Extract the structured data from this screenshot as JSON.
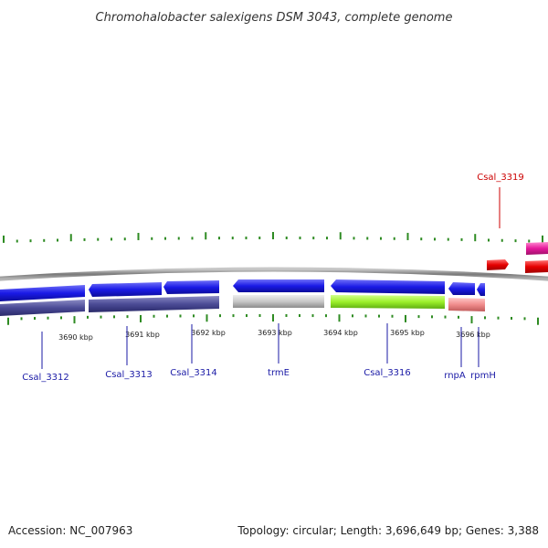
{
  "title": "Chromohalobacter salexigens DSM 3043, complete genome",
  "footer": {
    "accession": "Accession: NC_007963",
    "summary": "Topology: circular; Length: 3,696,649 bp; Genes: 3,388"
  },
  "colors": {
    "backbone": "#8a8a8a",
    "ticks": "#2e8b22",
    "label_blue": "#1a1aa6",
    "label_red": "#cc0000",
    "cds_blue": "#1a1ae6",
    "pseudo_dark": "#4b4b96",
    "grey": "#c8c8c8",
    "green": "#9cf02a",
    "pink": "#f08c8c",
    "red": "#e60000",
    "magenta": "#e6199b"
  },
  "scale_labels": [
    {
      "text": "3690 kbp"
    },
    {
      "text": "3691 kbp"
    },
    {
      "text": "3692 kbp"
    },
    {
      "text": "3693 kbp"
    },
    {
      "text": "3694 kbp"
    },
    {
      "text": "3695 kbp"
    },
    {
      "text": "3696 kbp"
    }
  ],
  "gene_labels": [
    {
      "text": "Csal_3312",
      "color": "#1a1aa6"
    },
    {
      "text": "Csal_3313",
      "color": "#1a1aa6"
    },
    {
      "text": "Csal_3314",
      "color": "#1a1aa6"
    },
    {
      "text": "trmE",
      "color": "#1a1aa6"
    },
    {
      "text": "Csal_3316",
      "color": "#1a1aa6"
    },
    {
      "text": "rnpA",
      "color": "#1a1aa6"
    },
    {
      "text": "rpmH",
      "color": "#1a1aa6"
    },
    {
      "text": "Csal_3319",
      "color": "#cc0000"
    }
  ]
}
